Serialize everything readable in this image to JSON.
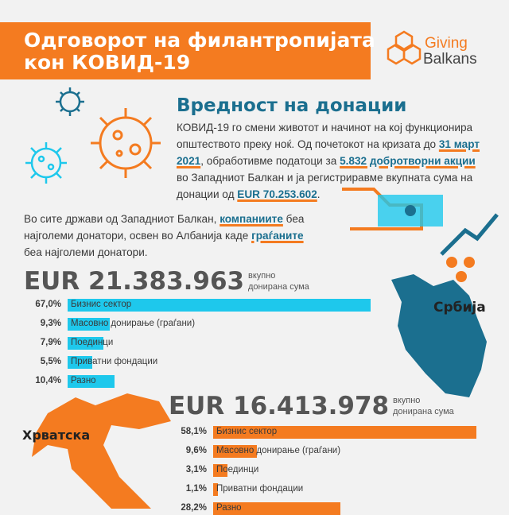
{
  "header": {
    "title_lines": [
      "Одговорот на филантропијата",
      "кон КОВИД-19"
    ],
    "logo": [
      "Giving",
      "Balkans"
    ]
  },
  "heading": "Вредност на донации",
  "intro": {
    "lines": [
      [
        "КОВИД-19 го смени животот и начинот на кој функционира"
      ],
      [
        "општеството преку ноќ. Од почетокот на кризата до ",
        "31 март"
      ],
      [
        "2021",
        ", обработивме податоци за ",
        "5.832 добротворни акции"
      ],
      [
        "во Западниот Балкан и ја регистриравме вкупната сума на"
      ],
      [
        "донации од ",
        "EUR 70.253.602",
        "."
      ]
    ]
  },
  "note": {
    "lines": [
      [
        "Во сите држави од Западниот Балкан, ",
        "компаниите",
        " беа"
      ],
      [
        "најголеми донатори, освен во Албанија каде ",
        "граѓаните"
      ],
      [
        "беа најголеми донатори."
      ]
    ]
  },
  "serbia": {
    "country": "Србија",
    "total": "EUR 21.383.963",
    "total_note": [
      "вкупно",
      "донирана сума"
    ],
    "color": "#1ec8ec",
    "rows": [
      {
        "value": 67.0,
        "label": "67,0%",
        "name": "Бизнис сектор"
      },
      {
        "value": 9.3,
        "label": "9,3%",
        "name": "Масовно донирање (граѓани)"
      },
      {
        "value": 7.9,
        "label": "7,9%",
        "name": "Поединци"
      },
      {
        "value": 5.5,
        "label": "5,5%",
        "name": "Приватни фондации"
      },
      {
        "value": 10.4,
        "label": "10,4%",
        "name": "Разно"
      }
    ]
  },
  "croatia": {
    "country": "Хрватска",
    "total": "EUR 16.413.978",
    "total_note": [
      "вкупно",
      "донирана сума"
    ],
    "color": "#f47b20",
    "rows": [
      {
        "value": 58.1,
        "label": "58,1%",
        "name": "Бизнис сектор"
      },
      {
        "value": 9.6,
        "label": "9,6%",
        "name": "Масовно донирање (граѓани)"
      },
      {
        "value": 3.1,
        "label": "3,1%",
        "name": "Поединци"
      },
      {
        "value": 1.1,
        "label": "1,1%",
        "name": "Приватни фондации"
      },
      {
        "value": 28.2,
        "label": "28,2%",
        "name": "Разно"
      }
    ]
  }
}
